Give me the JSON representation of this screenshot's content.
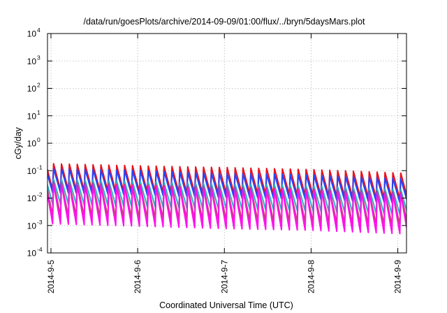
{
  "chart_data": {
    "type": "line",
    "title": "/data/run/goesPlots/archive/2014-09-09/01:00/flux/../bryn/5daysMars.plot",
    "xlabel": "Coordinated Universal Time (UTC)",
    "ylabel": "cGy/day",
    "yscale": "log",
    "ylim": [
      0.0001,
      10000
    ],
    "xlim": [
      0.96,
      5.1
    ],
    "y_ticks": [
      {
        "base": "10",
        "exp": "-4",
        "value": 0.0001
      },
      {
        "base": "10",
        "exp": "-3",
        "value": 0.001
      },
      {
        "base": "10",
        "exp": "-2",
        "value": 0.01
      },
      {
        "base": "10",
        "exp": "-1",
        "value": 0.1
      },
      {
        "base": "10",
        "exp": "0",
        "value": 1
      },
      {
        "base": "10",
        "exp": "1",
        "value": 10
      },
      {
        "base": "10",
        "exp": "2",
        "value": 100
      },
      {
        "base": "10",
        "exp": "3",
        "value": 1000
      },
      {
        "base": "10",
        "exp": "4",
        "value": 10000
      }
    ],
    "x_ticks": [
      {
        "label": "2014-9-5",
        "value": 1
      },
      {
        "label": "2014-9-6",
        "value": 2
      },
      {
        "label": "2014-9-7",
        "value": 3
      },
      {
        "label": "2014-9-8",
        "value": 4
      },
      {
        "label": "2014-9-9",
        "value": 5
      }
    ],
    "grid": true,
    "sawtooth_period_days": 0.091,
    "series": [
      {
        "color": "#e8111c",
        "peaks": [
          [
            0.0,
            0.16
          ],
          [
            0.5,
            0.22
          ],
          [
            1.0,
            0.18
          ],
          [
            2.0,
            0.15
          ],
          [
            3.0,
            0.13
          ],
          [
            4.0,
            0.11
          ],
          [
            5.1,
            0.08
          ]
        ],
        "decay": 0.11
      },
      {
        "color": "#2244ff",
        "peaks": [
          [
            0.0,
            0.11
          ],
          [
            0.5,
            0.15
          ],
          [
            1.0,
            0.12
          ],
          [
            2.0,
            0.1
          ],
          [
            3.0,
            0.08
          ],
          [
            4.0,
            0.07
          ],
          [
            5.1,
            0.05
          ]
        ],
        "decay": 0.13
      },
      {
        "color": "#2bb3c8",
        "peaks": [
          [
            0.0,
            0.045
          ],
          [
            0.5,
            0.06
          ],
          [
            1.0,
            0.05
          ],
          [
            2.0,
            0.04
          ],
          [
            3.0,
            0.033
          ],
          [
            4.0,
            0.028
          ],
          [
            5.1,
            0.02
          ]
        ],
        "decay": 0.12
      },
      {
        "color": "#c93f6e",
        "peaks": [
          [
            0.0,
            0.035
          ],
          [
            0.5,
            0.045
          ],
          [
            1.0,
            0.038
          ],
          [
            2.0,
            0.03
          ],
          [
            3.0,
            0.025
          ],
          [
            4.0,
            0.021
          ],
          [
            5.1,
            0.016
          ]
        ],
        "decay": 0.06
      },
      {
        "color": "#ff10ee",
        "peaks": [
          [
            0.0,
            0.03
          ],
          [
            0.5,
            0.04
          ],
          [
            1.0,
            0.033
          ],
          [
            2.0,
            0.027
          ],
          [
            3.0,
            0.022
          ],
          [
            4.0,
            0.019
          ],
          [
            5.1,
            0.014
          ]
        ],
        "decay": 0.035
      }
    ]
  }
}
